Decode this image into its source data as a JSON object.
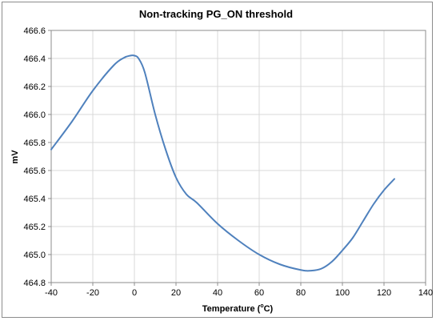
{
  "chart_data": {
    "type": "line",
    "title": "Non-tracking PG_ON threshold",
    "xlabel": "Temperature (ºC)",
    "xlabel_parts": {
      "pre": "Temperature (",
      "sup": "o",
      "post": "C)"
    },
    "ylabel": "mV",
    "xlim": [
      -40,
      140
    ],
    "ylim": [
      464.8,
      466.6
    ],
    "x_ticks": [
      -40,
      -20,
      0,
      20,
      40,
      60,
      80,
      100,
      120,
      140
    ],
    "x_tick_labels": [
      "-40",
      "-20",
      "0",
      "20",
      "40",
      "60",
      "80",
      "100",
      "120",
      "140"
    ],
    "y_ticks": [
      464.8,
      465.0,
      465.2,
      465.4,
      465.6,
      465.8,
      466.0,
      466.2,
      466.4,
      466.6
    ],
    "y_tick_labels": [
      "464.8",
      "465.0",
      "465.2",
      "465.4",
      "465.6",
      "465.8",
      "466.0",
      "466.2",
      "466.4",
      "466.6"
    ],
    "grid": true,
    "legend": "none",
    "series": [
      {
        "color": "#4f81bd",
        "x": [
          -40,
          -30,
          -20,
          -10,
          -5,
          -2,
          0,
          2,
          5,
          10,
          15,
          20,
          25,
          30,
          40,
          50,
          60,
          70,
          80,
          85,
          90,
          95,
          100,
          105,
          110,
          115,
          120,
          125
        ],
        "y": [
          465.75,
          465.95,
          466.17,
          466.35,
          466.405,
          466.42,
          466.42,
          466.4,
          466.3,
          466.0,
          465.75,
          465.55,
          465.43,
          465.37,
          465.22,
          465.1,
          465.0,
          464.93,
          464.89,
          464.885,
          464.9,
          464.95,
          465.03,
          465.12,
          465.24,
          465.36,
          465.46,
          465.54
        ]
      }
    ]
  }
}
